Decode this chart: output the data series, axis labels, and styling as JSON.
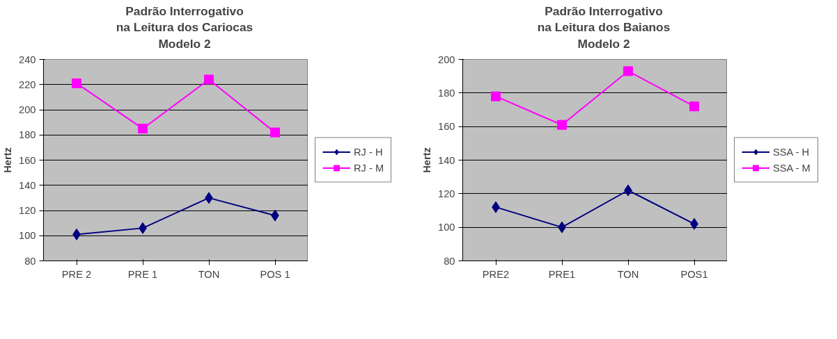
{
  "chart_data": [
    {
      "type": "line",
      "title": "Padrão Interrogativo\nna Leitura dos Cariocas\nModelo 2",
      "ylabel": "Hertz",
      "categories": [
        "PRE 2",
        "PRE 1",
        "TON",
        "POS 1"
      ],
      "ylim": [
        80,
        240
      ],
      "yticks": [
        80,
        100,
        120,
        140,
        160,
        180,
        200,
        220,
        240
      ],
      "grid": "y",
      "legend": "right",
      "series": [
        {
          "name": "RJ - H",
          "color": "#000080",
          "marker": "diamond",
          "values": [
            101,
            106,
            130,
            116
          ]
        },
        {
          "name": "RJ - M",
          "color": "#ff00ff",
          "marker": "square",
          "values": [
            221,
            185,
            224,
            182
          ]
        }
      ]
    },
    {
      "type": "line",
      "title": "Padrão Interrogativo\nna Leitura dos Baianos\nModelo 2",
      "ylabel": "Hertz",
      "categories": [
        "PRE2",
        "PRE1",
        "TON",
        "POS1"
      ],
      "ylim": [
        80,
        200
      ],
      "yticks": [
        80,
        100,
        120,
        140,
        160,
        180,
        200
      ],
      "grid": "y",
      "legend": "right",
      "series": [
        {
          "name": "SSA - H",
          "color": "#000080",
          "marker": "diamond",
          "values": [
            112,
            100,
            122,
            102
          ]
        },
        {
          "name": "SSA - M",
          "color": "#ff00ff",
          "marker": "square",
          "values": [
            178,
            161,
            193,
            172
          ]
        }
      ]
    }
  ]
}
